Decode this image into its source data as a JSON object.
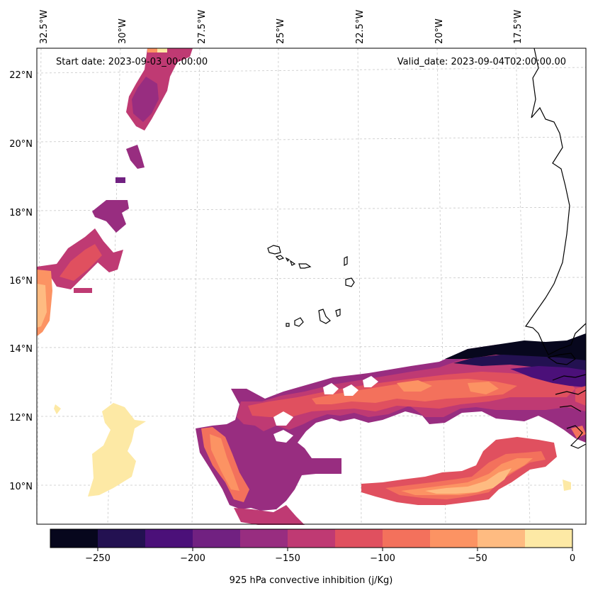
{
  "map": {
    "start_label": "Start date: 2023-09-03_00:00:00",
    "valid_label": "Valid_date: 2023-09-04T02:00:00.00",
    "lon_labels": [
      "32.5°W",
      "30°W",
      "27.5°W",
      "25°W",
      "22.5°W",
      "20°W",
      "17.5°W"
    ],
    "lat_labels": [
      "22°N",
      "20°N",
      "18°N",
      "16°N",
      "14°N",
      "12°N",
      "10°N"
    ]
  },
  "colorbar": {
    "label": "925 hPa convective inhibition (j/Kg)",
    "ticks": [
      "−250",
      "−200",
      "−150",
      "−100",
      "−50",
      "0"
    ],
    "levels": [
      -275,
      -250,
      -225,
      -200,
      -175,
      -150,
      -125,
      -100,
      -75,
      -50,
      -25,
      0
    ],
    "colors": [
      "#07071d",
      "#231151",
      "#4b1079",
      "#712181",
      "#982d80",
      "#bf3a73",
      "#e0505f",
      "#f3715c",
      "#fc9363",
      "#febb81",
      "#fde9a5"
    ]
  }
}
